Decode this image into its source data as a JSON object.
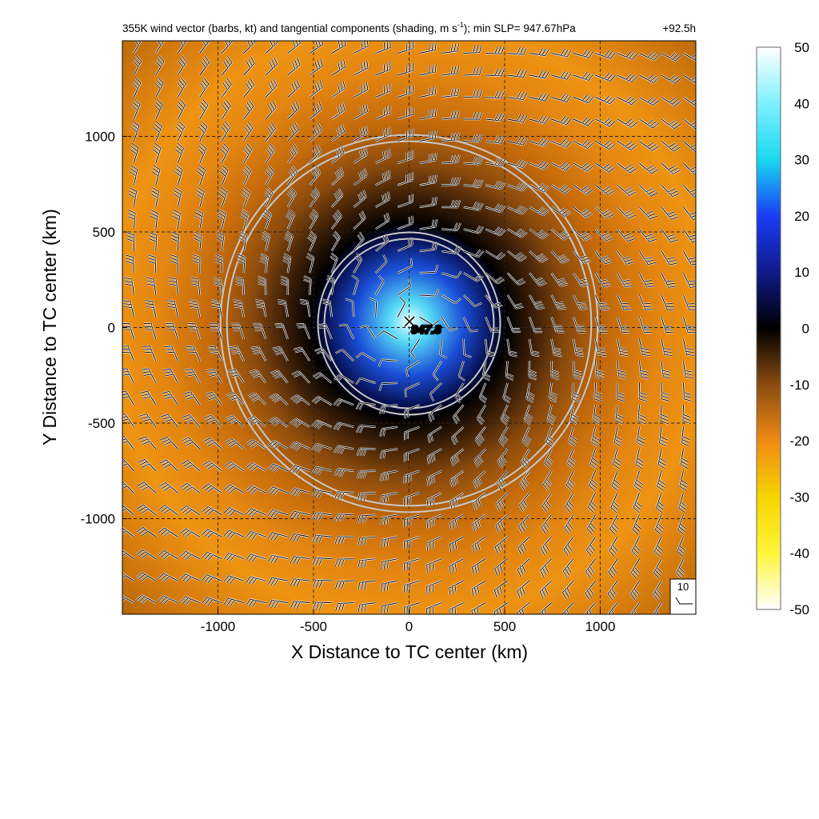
{
  "chart_data": {
    "type": "heatmap",
    "title": "355K wind vector (barbs, kt) and tangential components (shading, m s",
    "title_superscript": "-1",
    "title_suffix": "); min SLP= 947.67hPa",
    "forecast_hour": "+92.5h",
    "xlabel": "X Distance to TC center (km)",
    "ylabel": "Y Distance to TC center (km)",
    "xlim": [
      -1500,
      1500
    ],
    "ylim": [
      -1500,
      1500
    ],
    "x_ticks": [
      -1000,
      -500,
      0,
      500,
      1000
    ],
    "y_ticks": [
      -1000,
      -500,
      0,
      500,
      1000
    ],
    "grid": true,
    "grid_style": "dashed",
    "colorbar": {
      "range": [
        -50,
        50
      ],
      "ticks": [
        50,
        40,
        30,
        20,
        10,
        0,
        -10,
        -20,
        -30,
        -40,
        -50
      ]
    },
    "center_marker": {
      "x": 0,
      "y": 0,
      "label": "947.8"
    },
    "range_circles_km": [
      460,
      970
    ],
    "barb_reference": {
      "label": "10"
    },
    "barb_grid_spacing_km": 115
  }
}
